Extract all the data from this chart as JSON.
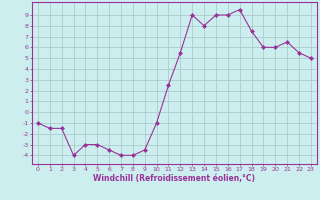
{
  "x": [
    0,
    1,
    2,
    3,
    4,
    5,
    6,
    7,
    8,
    9,
    10,
    11,
    12,
    13,
    14,
    15,
    16,
    17,
    18,
    19,
    20,
    21,
    22,
    23
  ],
  "y": [
    -1,
    -1.5,
    -1.5,
    -4,
    -3,
    -3,
    -3.5,
    -4,
    -4,
    -3.5,
    -1,
    2.5,
    5.5,
    9,
    8,
    9,
    9,
    9.5,
    7.5,
    6,
    6,
    6.5,
    5.5,
    5
  ],
  "line_color": "#993399",
  "marker": "D",
  "marker_size": 2.0,
  "bg_color": "#cceeee",
  "grid_color": "#aacccc",
  "xlabel": "Windchill (Refroidissement éolien,°C)",
  "xlim": [
    -0.5,
    23.5
  ],
  "ylim": [
    -4.8,
    10.2
  ],
  "yticks": [
    -4,
    -3,
    -2,
    -1,
    0,
    1,
    2,
    3,
    4,
    5,
    6,
    7,
    8,
    9
  ],
  "xticks": [
    0,
    1,
    2,
    3,
    4,
    5,
    6,
    7,
    8,
    9,
    10,
    11,
    12,
    13,
    14,
    15,
    16,
    17,
    18,
    19,
    20,
    21,
    22,
    23
  ],
  "spine_color": "#993399",
  "tick_color": "#993399",
  "label_color": "#993399"
}
